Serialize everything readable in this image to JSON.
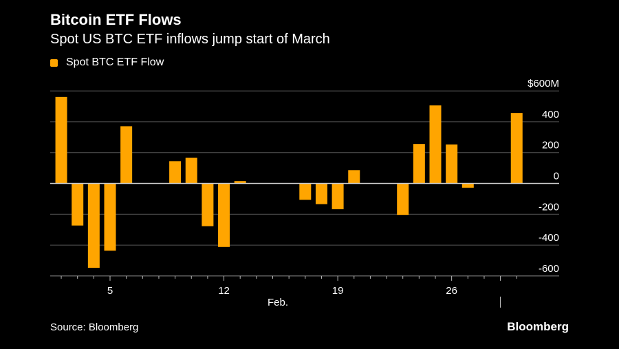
{
  "chart_data": {
    "type": "bar",
    "title": "Bitcoin ETF Flows",
    "subtitle": "Spot US BTC ETF inflows jump start of March",
    "legend": {
      "position": "top-left",
      "entries": [
        "Spot BTC ETF Flow"
      ]
    },
    "series": [
      {
        "name": "Spot BTC ETF Flow",
        "color": "#FFA500",
        "x": [
          "Feb 2",
          "Feb 3",
          "Feb 4",
          "Feb 5",
          "Feb 6",
          "Feb 9",
          "Feb 10",
          "Feb 11",
          "Feb 12",
          "Feb 13",
          "Feb 17",
          "Feb 18",
          "Feb 19",
          "Feb 20",
          "Feb 23",
          "Feb 24",
          "Feb 25",
          "Feb 26",
          "Feb 27",
          "Mar 2"
        ],
        "values": [
          561,
          -273,
          -547,
          -436,
          371,
          144,
          167,
          -277,
          -412,
          15,
          -106,
          -134,
          -167,
          86,
          -204,
          256,
          506,
          253,
          -28,
          457
        ]
      }
    ],
    "yaxis": {
      "unit_label": "$600M",
      "ticks": [
        600,
        400,
        200,
        0,
        -200,
        -400,
        -600
      ],
      "tick_labels": [
        "$600M",
        "400",
        "200",
        "0",
        "-200",
        "-400",
        "-600"
      ],
      "range": [
        -600,
        600
      ],
      "position": "right",
      "grid": true
    },
    "xaxis": {
      "tick_labels": [
        "5",
        "12",
        "19",
        "26"
      ],
      "tick_days": [
        5,
        12,
        19,
        26
      ],
      "month_label": "Feb.",
      "range_days": [
        2,
        30
      ]
    },
    "source": "Source: Bloomberg",
    "brand": "Bloomberg"
  }
}
